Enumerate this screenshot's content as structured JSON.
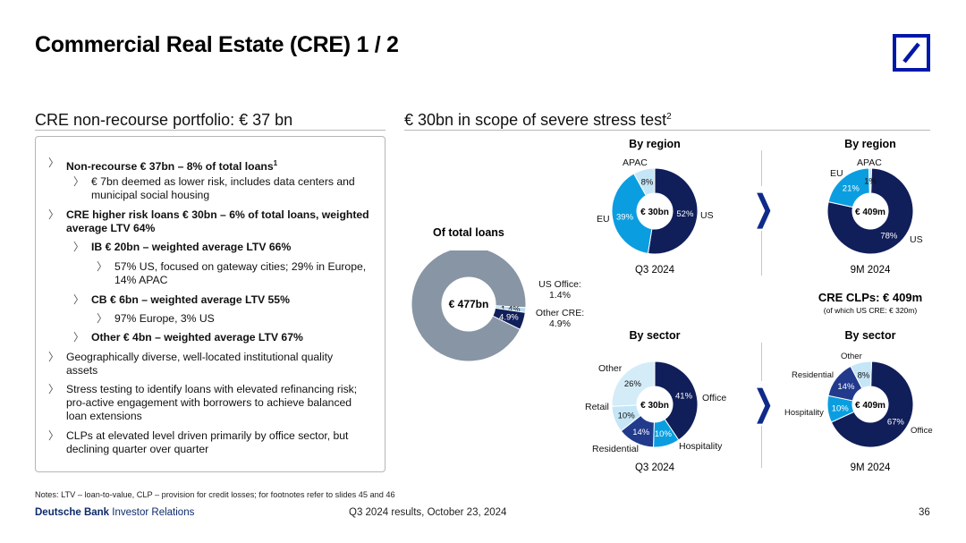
{
  "title": "Commercial Real Estate (CRE) 1 / 2",
  "left": {
    "heading": "CRE non-recourse portfolio: € 37 bn",
    "bullets": [
      {
        "bold": "Non-recourse € 37bn – 8% of total loans",
        "sup": "1",
        "text": ""
      },
      {
        "bold": "",
        "text": "€ 7bn deemed as lower risk, includes data centers and municipal social housing"
      },
      {
        "bold": "CRE higher risk loans € 30bn  – 6% of total loans, weighted average LTV 64%",
        "text": ""
      },
      {
        "bold": "IB € 20bn – weighted average LTV 66%",
        "text": ""
      },
      {
        "bold": "",
        "text": "57% US, focused on gateway cities; 29% in Europe, 14% APAC"
      },
      {
        "bold": "CB € 6bn – weighted average LTV 55%",
        "text": ""
      },
      {
        "bold": "",
        "text": "97% Europe, 3% US"
      },
      {
        "bold": "Other € 4bn – weighted average LTV 67%",
        "text": ""
      },
      {
        "bold": "",
        "text": "Geographically diverse, well-located institutional quality assets"
      },
      {
        "bold": "",
        "text": "Stress testing to identify loans with elevated refinancing risk; pro-active engagement with borrowers to achieve balanced loan extensions"
      },
      {
        "bold": "",
        "text": "CLPs at elevated level driven primarily by office sector, but declining quarter over quarter"
      }
    ]
  },
  "right": {
    "heading": "€ 30bn in scope of severe stress test",
    "heading_sup": "2",
    "clps_title": "CRE CLPs: € 409m",
    "clps_sub": "(of which US CRE: € 320m)",
    "arrow_glyph": "❯"
  },
  "colors": {
    "navy": "#101e5a",
    "blue": "#0a9ee0",
    "light": "#c5e6f6",
    "gray": "#8795a5",
    "pale": "#b9dbf1"
  },
  "chart_data": [
    {
      "type": "pie",
      "variant": "donut",
      "title": "Of total loans",
      "center": "€ 477bn",
      "categories": [
        "Rest",
        "US Office:",
        "Other CRE:"
      ],
      "values": [
        93.7,
        1.4,
        4.9
      ],
      "labels": [
        "",
        "1.4%",
        "4.9%"
      ]
    },
    {
      "type": "pie",
      "variant": "donut",
      "title": "By region",
      "center": "€ 30bn",
      "period": "Q3 2024",
      "categories": [
        "US",
        "EU",
        "APAC"
      ],
      "values": [
        52,
        39,
        8
      ],
      "labels": [
        "52%",
        "39%",
        "8%"
      ]
    },
    {
      "type": "pie",
      "variant": "donut",
      "title": "By region",
      "center": "€ 409m",
      "period": "9M 2024",
      "categories": [
        "US",
        "EU",
        "APAC"
      ],
      "values": [
        78,
        21,
        1
      ],
      "labels": [
        "78%",
        "21%",
        "1%"
      ]
    },
    {
      "type": "pie",
      "variant": "donut",
      "title": "By sector",
      "center": "€ 30bn",
      "period": "Q3 2024",
      "categories": [
        "Office",
        "Hospitality",
        "Residential",
        "Retail",
        "Other"
      ],
      "values": [
        41,
        10,
        14,
        10,
        26
      ],
      "labels": [
        "41%",
        "10%",
        "14%",
        "10%",
        "26%"
      ]
    },
    {
      "type": "pie",
      "variant": "donut",
      "title": "By sector",
      "center": "€ 409m",
      "period": "9M 2024",
      "categories": [
        "Office",
        "Hospitality",
        "Residential",
        "Other"
      ],
      "values": [
        67,
        10,
        14,
        8
      ],
      "labels": [
        "67%",
        "10%",
        "14%",
        "8%"
      ]
    }
  ],
  "footer": {
    "notes": "Notes: LTV – loan-to-value, CLP – provision for credit losses; for footnotes refer to slides 45 and 46",
    "brand_bold": "Deutsche Bank",
    "brand_rest": " Investor Relations",
    "center": "Q3 2024 results, October 23, 2024",
    "page": "36"
  }
}
